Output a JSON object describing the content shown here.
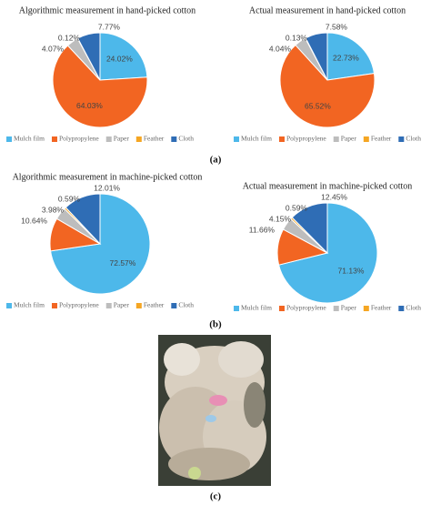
{
  "chart_data": [
    {
      "type": "pie",
      "title": "Algorithmic measurement in hand-picked cotton",
      "categories": [
        "Mulch film",
        "Polypropylene",
        "Paper",
        "Feather",
        "Cloth"
      ],
      "values": [
        24.02,
        64.03,
        4.07,
        0.12,
        7.77
      ],
      "value_labels": [
        "24.02%",
        "64.03%",
        "4.07%",
        "0.12%",
        "7.77%"
      ],
      "colors": [
        "#4db8ea",
        "#f26522",
        "#bdbdbd",
        "#f5a623",
        "#2f6db5"
      ]
    },
    {
      "type": "pie",
      "title": "Actual measurement in hand-picked cotton",
      "categories": [
        "Mulch film",
        "Polypropylene",
        "Paper",
        "Feather",
        "Cloth"
      ],
      "values": [
        22.73,
        65.52,
        4.04,
        0.13,
        7.58
      ],
      "value_labels": [
        "22.73%",
        "65.52%",
        "4.04%",
        "0.13%",
        "7.58%"
      ],
      "colors": [
        "#4db8ea",
        "#f26522",
        "#bdbdbd",
        "#f5a623",
        "#2f6db5"
      ]
    },
    {
      "type": "pie",
      "title": "Algorithmic measurement in machine-picked cotton",
      "categories": [
        "Mulch film",
        "Polypropylene",
        "Paper",
        "Feather",
        "Cloth"
      ],
      "values": [
        72.57,
        10.64,
        3.98,
        0.59,
        12.01
      ],
      "value_labels": [
        "72.57%",
        "10.64%",
        "3.98%",
        "0.59%",
        "12.01%"
      ],
      "colors": [
        "#4db8ea",
        "#f26522",
        "#bdbdbd",
        "#f5a623",
        "#2f6db5"
      ]
    },
    {
      "type": "pie",
      "title": "Actual measurement in machine-picked cotton",
      "categories": [
        "Mulch film",
        "Polypropylene",
        "Paper",
        "Feather",
        "Cloth"
      ],
      "values": [
        71.13,
        11.66,
        4.15,
        0.59,
        12.45
      ],
      "value_labels": [
        "71.13%",
        "11.66%",
        "4.15%",
        "0.59%",
        "12.45%"
      ],
      "colors": [
        "#4db8ea",
        "#f26522",
        "#bdbdbd",
        "#f5a623",
        "#2f6db5"
      ]
    }
  ],
  "panels": [
    "(a)",
    "(b)",
    "(c)"
  ]
}
